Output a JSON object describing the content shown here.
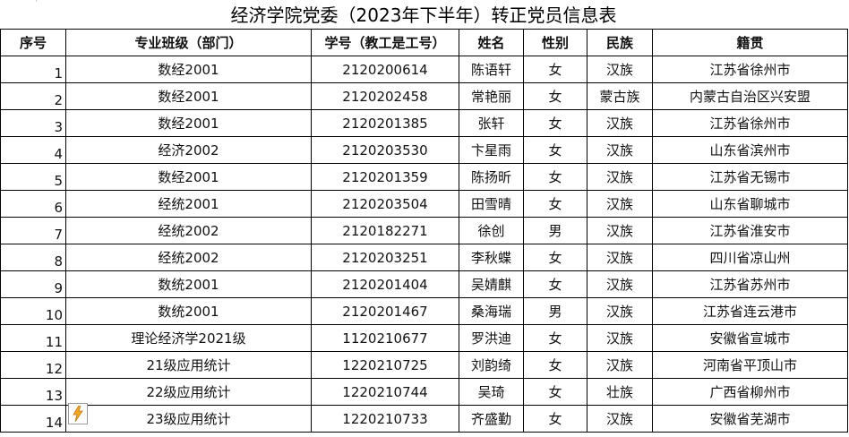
{
  "title": "经济学院党委（2023年下半年）转正党员信息表",
  "columns": [
    "序号",
    "专业班级（部门）",
    "学号（教工是工号）",
    "姓名",
    "性别",
    "民族",
    "籍贯"
  ],
  "rows": [
    [
      "1",
      "数经2001",
      "2120200614",
      "陈语轩",
      "女",
      "汉族",
      "江苏省徐州市"
    ],
    [
      "2",
      "数经2001",
      "2120202458",
      "常艳丽",
      "女",
      "蒙古族",
      "内蒙古自治区兴安盟"
    ],
    [
      "3",
      "数经2001",
      "2120201385",
      "张轩",
      "女",
      "汉族",
      "江苏省徐州市"
    ],
    [
      "4",
      "经济2002",
      "2120203530",
      "卞星雨",
      "女",
      "汉族",
      "山东省滨州市"
    ],
    [
      "5",
      "数经2001",
      "2120201359",
      "陈扬昕",
      "女",
      "汉族",
      "江苏省无锡市"
    ],
    [
      "6",
      "经统2001",
      "2120203504",
      "田雪晴",
      "女",
      "汉族",
      "山东省聊城市"
    ],
    [
      "7",
      "经统2002",
      "2120182271",
      "徐创",
      "男",
      "汉族",
      "江苏省淮安市"
    ],
    [
      "8",
      "经统2002",
      "2120203251",
      "李秋蝶",
      "女",
      "汉族",
      "四川省凉山州"
    ],
    [
      "9",
      "数统2001",
      "2120201404",
      "吴婧麒",
      "女",
      "汉族",
      "江苏省苏州市"
    ],
    [
      "10",
      "数统2001",
      "2120201467",
      "桑海瑞",
      "男",
      "汉族",
      "江苏省连云港市"
    ],
    [
      "11",
      "理论经济学2021级",
      "1120210677",
      "罗洪迪",
      "女",
      "汉族",
      "安徽省宣城市"
    ],
    [
      "12",
      "21级应用统计",
      "1220210725",
      "刘韵绮",
      "女",
      "汉族",
      "河南省平顶山市"
    ],
    [
      "13",
      "22级应用统计",
      "1220210744",
      "吴琦",
      "女",
      "壮族",
      "广西省柳州市"
    ],
    [
      "14",
      "23级应用统计",
      "1220210733",
      "齐盛勤",
      "女",
      "汉族",
      "安徽省芜湖市"
    ]
  ],
  "quick_analysis_icon": "lightning-icon",
  "accent": "#f5a623"
}
